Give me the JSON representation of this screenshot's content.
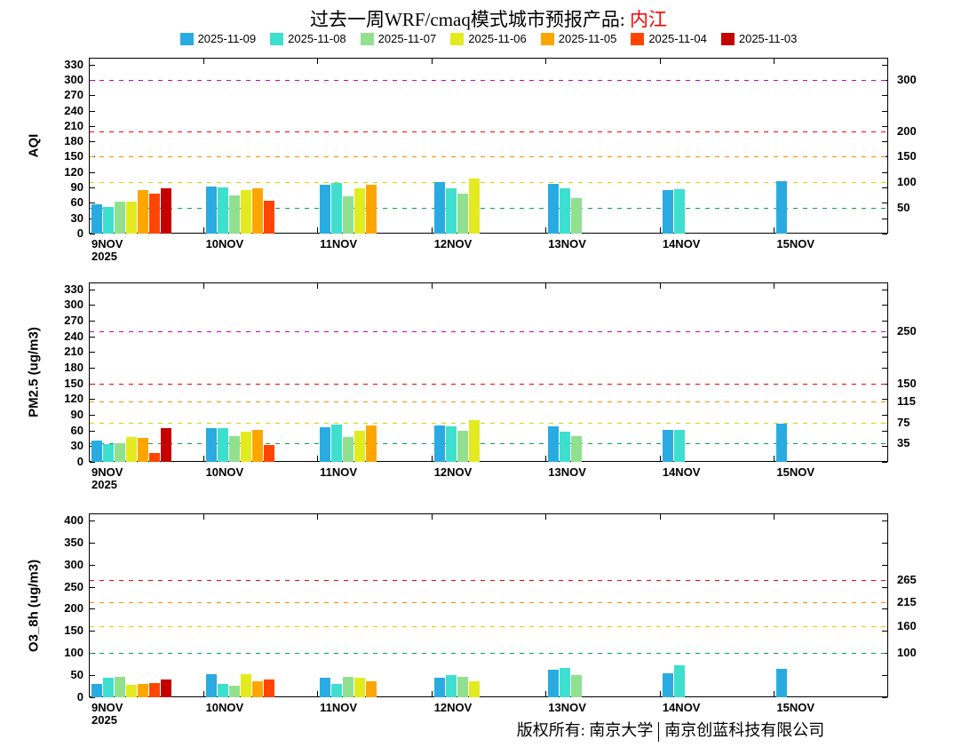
{
  "title": {
    "prefix": "过去一周WRF/cmaq模式城市预报产品: ",
    "city": "内江"
  },
  "legend": {
    "items": [
      {
        "label": "2025-11-09",
        "color": "#29ABE2"
      },
      {
        "label": "2025-11-08",
        "color": "#3EDFCE"
      },
      {
        "label": "2025-11-07",
        "color": "#90E090"
      },
      {
        "label": "2025-11-06",
        "color": "#E3EB1E"
      },
      {
        "label": "2025-11-05",
        "color": "#FFA500"
      },
      {
        "label": "2025-11-04",
        "color": "#FF4500"
      },
      {
        "label": "2025-11-03",
        "color": "#C40000"
      }
    ]
  },
  "footer": {
    "left": "版权所有: 南京大学",
    "right": "南京创蓝科技有限公司"
  },
  "chart_data": [
    {
      "type": "bar",
      "name": "AQI",
      "ylabel": "AQI",
      "ylim": [
        0,
        330
      ],
      "ytick_step": 30,
      "grid": false,
      "legend_position": "top",
      "x_categories": [
        "9NOV",
        "10NOV",
        "11NOV",
        "12NOV",
        "13NOV",
        "14NOV",
        "15NOV"
      ],
      "x_sub_label": "2025",
      "reference_lines": [
        {
          "value": 50,
          "color": "#00A550",
          "label": "50"
        },
        {
          "value": 100,
          "color": "#D8D800",
          "label": "100"
        },
        {
          "value": 150,
          "color": "#FF8C00",
          "label": "150"
        },
        {
          "value": 200,
          "color": "#FF0000",
          "label": "200"
        },
        {
          "value": 300,
          "color": "#C800C8",
          "label": "300"
        }
      ],
      "series": [
        {
          "name": "2025-11-09",
          "values": [
            58,
            92,
            95,
            100,
            97,
            85,
            102
          ]
        },
        {
          "name": "2025-11-08",
          "values": [
            52,
            90,
            98,
            88,
            88,
            87
          ]
        },
        {
          "name": "2025-11-07",
          "values": [
            63,
            75,
            72,
            78,
            70
          ]
        },
        {
          "name": "2025-11-06",
          "values": [
            63,
            85,
            88,
            108
          ]
        },
        {
          "name": "2025-11-05",
          "values": [
            85,
            88,
            95
          ]
        },
        {
          "name": "2025-11-04",
          "values": [
            78,
            65
          ]
        },
        {
          "name": "2025-11-03",
          "values": [
            88
          ]
        }
      ]
    },
    {
      "type": "bar",
      "name": "PM2.5",
      "ylabel": "PM2.5 (ug/m3)",
      "ylim": [
        0,
        330
      ],
      "ytick_step": 30,
      "grid": false,
      "legend_position": "top",
      "x_categories": [
        "9NOV",
        "10NOV",
        "11NOV",
        "12NOV",
        "13NOV",
        "14NOV",
        "15NOV"
      ],
      "x_sub_label": "2025",
      "reference_lines": [
        {
          "value": 35,
          "color": "#00A550",
          "label": "35"
        },
        {
          "value": 75,
          "color": "#D8D800",
          "label": "75"
        },
        {
          "value": 115,
          "color": "#FF8C00",
          "label": "115"
        },
        {
          "value": 150,
          "color": "#FF0000",
          "label": "150"
        },
        {
          "value": 250,
          "color": "#C800C8",
          "label": "250"
        }
      ],
      "series": [
        {
          "name": "2025-11-09",
          "values": [
            40,
            65,
            67,
            70,
            68,
            62,
            73
          ]
        },
        {
          "name": "2025-11-08",
          "values": [
            34,
            65,
            72,
            68,
            58,
            62
          ]
        },
        {
          "name": "2025-11-07",
          "values": [
            36,
            50,
            48,
            60,
            50
          ]
        },
        {
          "name": "2025-11-06",
          "values": [
            47,
            57,
            60,
            80
          ]
        },
        {
          "name": "2025-11-05",
          "values": [
            46,
            62,
            70
          ]
        },
        {
          "name": "2025-11-04",
          "values": [
            17,
            33
          ]
        },
        {
          "name": "2025-11-03",
          "values": [
            65
          ]
        }
      ]
    },
    {
      "type": "bar",
      "name": "O3_8h",
      "ylabel": "O3_8h (ug/m3)",
      "ylim": [
        0,
        400
      ],
      "ytick_step": 50,
      "grid": false,
      "legend_position": "top",
      "x_categories": [
        "9NOV",
        "10NOV",
        "11NOV",
        "12NOV",
        "13NOV",
        "14NOV",
        "15NOV"
      ],
      "x_sub_label": "2025",
      "reference_lines": [
        {
          "value": 100,
          "color": "#00A550",
          "label": "100"
        },
        {
          "value": 160,
          "color": "#D8D800",
          "label": "160"
        },
        {
          "value": 215,
          "color": "#FF8C00",
          "label": "215"
        },
        {
          "value": 265,
          "color": "#FF0000",
          "label": "265"
        }
      ],
      "series": [
        {
          "name": "2025-11-09",
          "values": [
            30,
            52,
            45,
            45,
            63,
            55,
            65
          ]
        },
        {
          "name": "2025-11-08",
          "values": [
            45,
            30,
            30,
            50,
            67,
            72
          ]
        },
        {
          "name": "2025-11-07",
          "values": [
            46,
            27,
            47,
            47,
            50
          ]
        },
        {
          "name": "2025-11-06",
          "values": [
            28,
            52,
            45,
            37
          ]
        },
        {
          "name": "2025-11-05",
          "values": [
            31,
            37,
            37
          ]
        },
        {
          "name": "2025-11-04",
          "values": [
            32,
            40
          ]
        },
        {
          "name": "2025-11-03",
          "values": [
            40
          ]
        }
      ]
    }
  ]
}
